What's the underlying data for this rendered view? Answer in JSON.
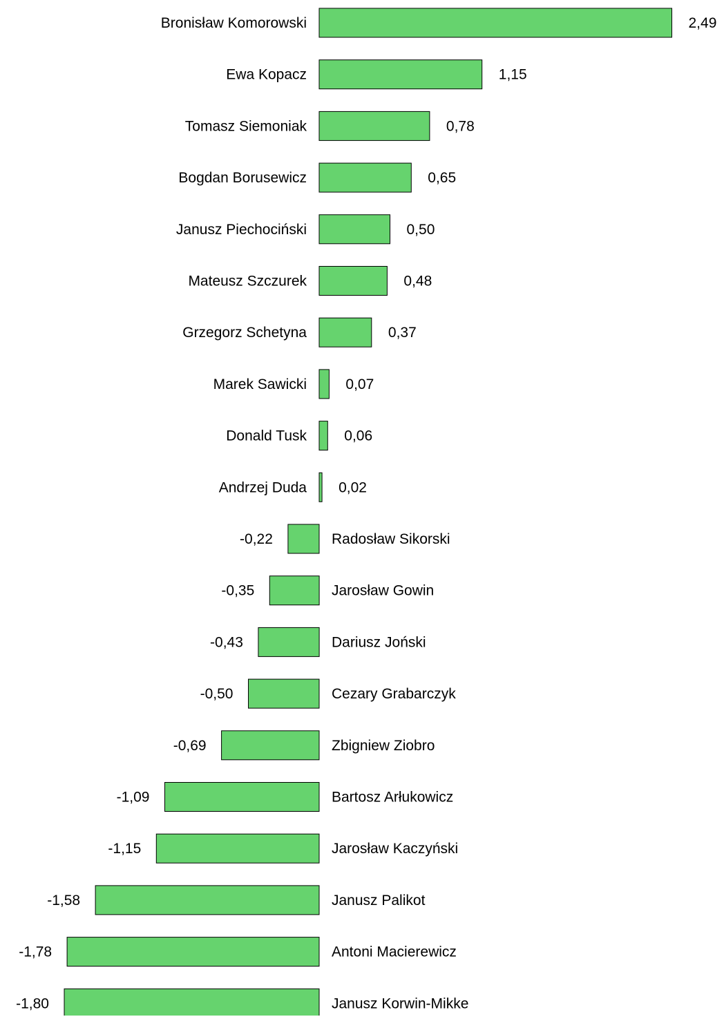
{
  "chart_data": {
    "type": "bar",
    "orientation": "horizontal",
    "categories": [
      "Bronisław Komorowski",
      "Ewa Kopacz",
      "Tomasz Siemoniak",
      "Bogdan Borusewicz",
      "Janusz Piechociński",
      "Mateusz Szczurek",
      "Grzegorz Schetyna",
      "Marek Sawicki",
      "Donald Tusk",
      "Andrzej Duda",
      "Radosław Sikorski",
      "Jarosław Gowin",
      "Dariusz Joński",
      "Cezary Grabarczyk",
      "Zbigniew Ziobro",
      "Bartosz Arłukowicz",
      "Jarosław Kaczyński",
      "Janusz Palikot",
      "Antoni Macierewicz",
      "Janusz Korwin-Mikke"
    ],
    "values": [
      2.49,
      1.15,
      0.78,
      0.65,
      0.5,
      0.48,
      0.37,
      0.07,
      0.06,
      0.02,
      -0.22,
      -0.35,
      -0.43,
      -0.5,
      -0.69,
      -1.09,
      -1.15,
      -1.58,
      -1.78,
      -1.8
    ],
    "value_labels": [
      "2,49",
      "1,15",
      "0,78",
      "0,65",
      "0,50",
      "0,48",
      "0,37",
      "0,07",
      "0,06",
      "0,02",
      "-0,22",
      "-0,35",
      "-0,43",
      "-0,50",
      "-0,69",
      "-1,09",
      "-1,15",
      "-1,58",
      "-1,78",
      "-1,80"
    ],
    "title": "",
    "xlabel": "",
    "ylabel": "",
    "xlim": [
      -1.8,
      2.49
    ],
    "grid": false,
    "legend": "none",
    "bar_color": "#66d36e",
    "bar_outline": "#000000"
  }
}
